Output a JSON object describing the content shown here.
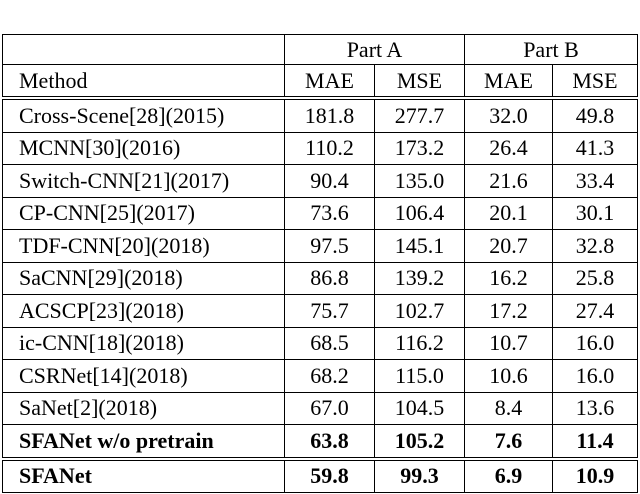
{
  "table": {
    "groups": [
      "Part A",
      "Part B"
    ],
    "columns": [
      "Method",
      "MAE",
      "MSE",
      "MAE",
      "MSE"
    ],
    "rows": [
      [
        "Cross-Scene[28](2015)",
        "181.8",
        "277.7",
        "32.0",
        "49.8"
      ],
      [
        "MCNN[30](2016)",
        "110.2",
        "173.2",
        "26.4",
        "41.3"
      ],
      [
        "Switch-CNN[21](2017)",
        "90.4",
        "135.0",
        "21.6",
        "33.4"
      ],
      [
        "CP-CNN[25](2017)",
        "73.6",
        "106.4",
        "20.1",
        "30.1"
      ],
      [
        "TDF-CNN[20](2018)",
        "97.5",
        "145.1",
        "20.7",
        "32.8"
      ],
      [
        "SaCNN[29](2018)",
        "86.8",
        "139.2",
        "16.2",
        "25.8"
      ],
      [
        "ACSCP[23](2018)",
        "75.7",
        "102.7",
        "17.2",
        "27.4"
      ],
      [
        "ic-CNN[18](2018)",
        "68.5",
        "116.2",
        "10.7",
        "16.0"
      ],
      [
        "CSRNet[14](2018)",
        "68.2",
        "115.0",
        "10.6",
        "16.0"
      ],
      [
        "SaNet[2](2018)",
        "67.0",
        "104.5",
        "8.4",
        "13.6"
      ],
      [
        "SFANet w/o pretrain",
        "63.8",
        "105.2",
        "7.6",
        "11.4"
      ],
      [
        "SFANet",
        "59.8",
        "99.3",
        "6.9",
        "10.9"
      ]
    ]
  }
}
